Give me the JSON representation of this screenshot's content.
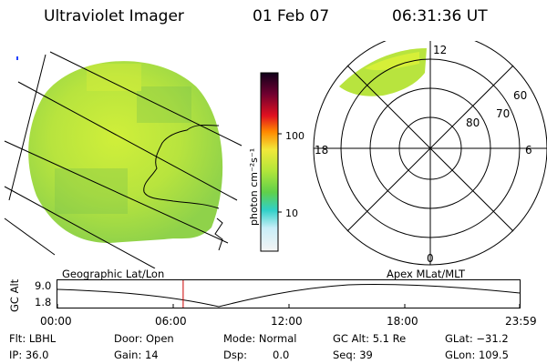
{
  "header": {
    "instrument": "Ultraviolet Imager",
    "date": "01 Feb 07",
    "time": "06:31:36 UT"
  },
  "colorbar": {
    "unit_label": "photon cm⁻²s⁻¹",
    "tick_100": "100",
    "tick_10": "10"
  },
  "polar_plot": {
    "lat_labels": [
      "80",
      "70",
      "60"
    ],
    "mlt_labels": {
      "top": "12",
      "left": "18",
      "right": "6",
      "bottom": "0"
    }
  },
  "altitude_panel": {
    "ylabel": "GC Alt",
    "ytick_top": "9.0",
    "ytick_bottom": "1.8",
    "left_caption": "Geographic Lat/Lon",
    "right_caption": "Apex MLat/MLT",
    "time_ticks": [
      "00:00",
      "06:00",
      "12:00",
      "18:00",
      "23:59"
    ],
    "current_time_fraction": 0.272
  },
  "status": {
    "filter": "Flt: LBHL",
    "door": "Door: Open",
    "mode": "Mode: Normal",
    "gc_alt": "GC Alt: 5.1 Re",
    "glat": "GLat: −31.2",
    "ip": "IP: 36.0",
    "gain": "Gain: 14",
    "dsp": "Dsp:",
    "dsp_value": "0.0",
    "seq": "Seq: 39",
    "glon": "GLon: 109.5"
  },
  "colors": {
    "image_main": "#b8e83a",
    "marker": "#cc0000"
  }
}
